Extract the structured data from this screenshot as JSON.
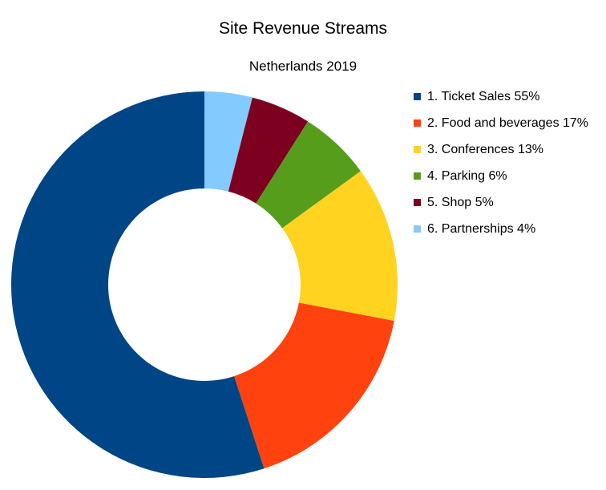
{
  "chart_data": {
    "type": "pie",
    "variant": "donut",
    "title": "Site Revenue Streams",
    "subtitle": "Netherlands 2019",
    "legend_position": "right",
    "slices": [
      {
        "label": "1. Ticket Sales 55%",
        "value": 55,
        "color": "#004586"
      },
      {
        "label": "2. Food and beverages 17%",
        "value": 17,
        "color": "#ff420e"
      },
      {
        "label": "3. Conferences 13%",
        "value": 13,
        "color": "#ffd320"
      },
      {
        "label": "4. Parking 6%",
        "value": 6,
        "color": "#579d1c"
      },
      {
        "label": "5. Shop 5%",
        "value": 5,
        "color": "#7e0021"
      },
      {
        "label": "6. Partnerships 4%",
        "value": 4,
        "color": "#83caff"
      }
    ]
  }
}
